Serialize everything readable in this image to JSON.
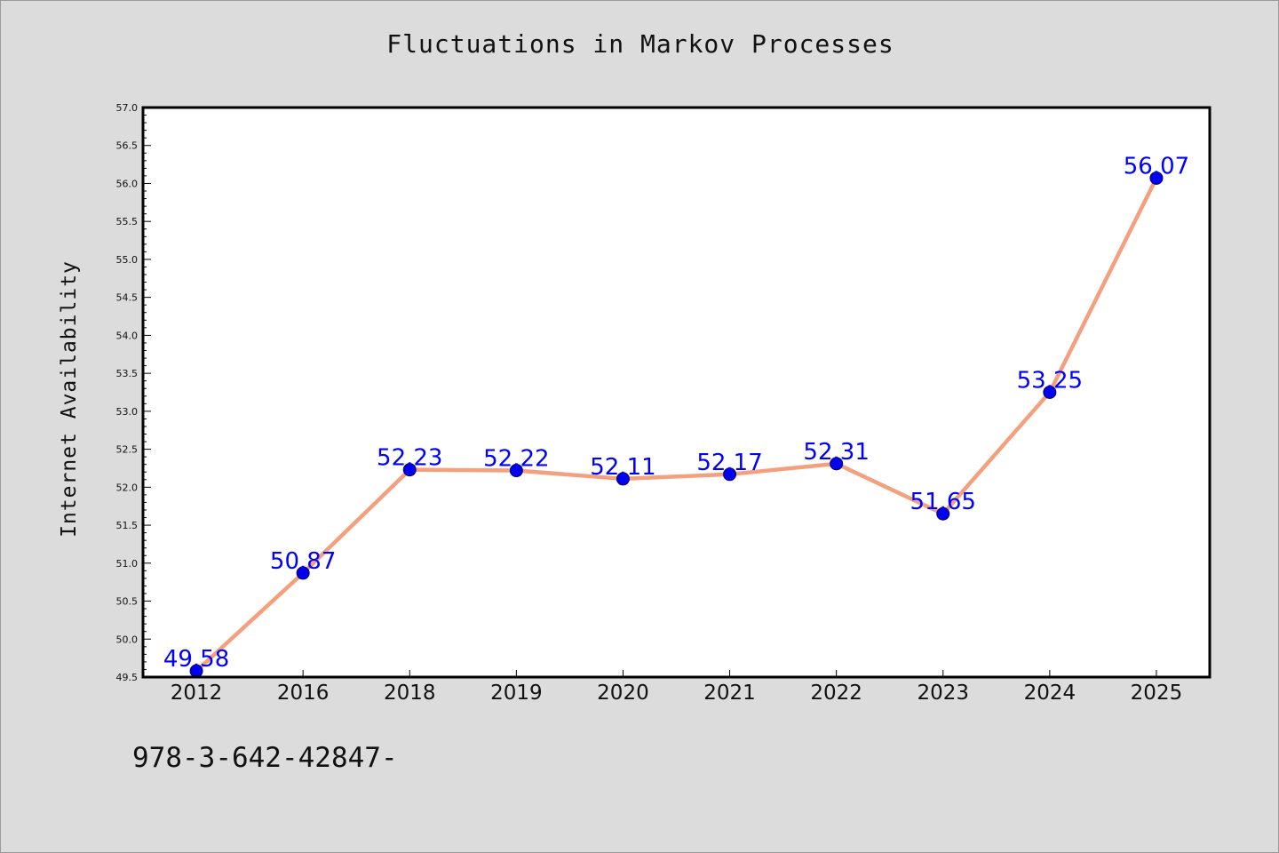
{
  "chart_data": {
    "type": "line",
    "title": "Fluctuations in Markov Processes",
    "xlabel": "",
    "ylabel": "Internet Availability",
    "categories": [
      "2012",
      "2016",
      "2018",
      "2019",
      "2020",
      "2021",
      "2022",
      "2023",
      "2024",
      "2025"
    ],
    "series": [
      {
        "values": [
          49.58,
          50.87,
          52.23,
          52.22,
          52.11,
          52.17,
          52.31,
          51.65,
          53.25,
          56.07
        ],
        "data_labels": [
          "49.58",
          "50.87",
          "52.23",
          "52.22",
          "52.11",
          "52.17",
          "52.31",
          "51.65",
          "53.25",
          "56.07"
        ]
      }
    ],
    "ylim": [
      49.5,
      57.0
    ],
    "y_ticks": [
      "49.5",
      "50.0",
      "50.5",
      "51.0",
      "51.5",
      "52.0",
      "52.5",
      "53.0",
      "53.5",
      "54.0",
      "54.5",
      "55.0",
      "55.5",
      "56.0",
      "56.5",
      "57.0"
    ],
    "grid": false,
    "legend": "none",
    "colors": {
      "line": "#f4a07f",
      "marker_fill": "#0000ee",
      "marker_edge": "#000066",
      "data_label": "#0000ff",
      "figure_background": "#dcdcdc",
      "plot_background": "#ffffff"
    }
  },
  "footnote": "978-3-642-42847-"
}
